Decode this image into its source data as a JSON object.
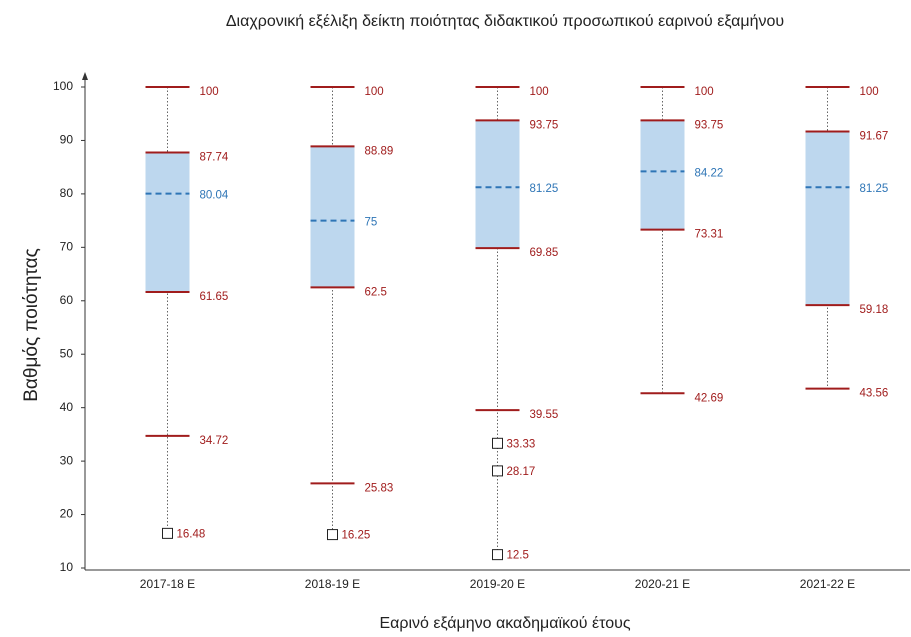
{
  "chart_data": {
    "type": "box",
    "title": "Διαχρονική εξέλιξη δείκτη ποιότητας διδακτικού προσωπικού εαρινού εξαμήνου",
    "xlabel": "Εαρινό εξάμηνο ακαδημαϊκού έτους",
    "ylabel": "Βαθμός ποιότητας",
    "categories": [
      "2017-18 E",
      "2018-19 E",
      "2019-20 E",
      "2020-21 E",
      "2021-22 E"
    ],
    "boxes": [
      {
        "max": 100,
        "q3": 87.74,
        "median": 80.04,
        "q1": 61.65,
        "min": 34.72,
        "outliers": [
          16.48
        ]
      },
      {
        "max": 100,
        "q3": 88.89,
        "median": 75,
        "q1": 62.5,
        "min": 25.83,
        "outliers": [
          16.25
        ]
      },
      {
        "max": 100,
        "q3": 93.75,
        "median": 81.25,
        "q1": 69.85,
        "min": 39.55,
        "outliers": [
          33.33,
          28.17,
          12.5
        ]
      },
      {
        "max": 100,
        "q3": 93.75,
        "median": 84.22,
        "q1": 73.31,
        "min": 42.69,
        "outliers": []
      },
      {
        "max": 100,
        "q3": 91.67,
        "median": 81.25,
        "q1": 59.18,
        "min": 43.56,
        "outliers": []
      }
    ],
    "box_color": "#bdd7ee",
    "whisker_color": "#a01c1c",
    "median_color": "#2e75b6",
    "ylim": [
      10,
      100
    ],
    "yticks": [
      10,
      20,
      30,
      40,
      50,
      60,
      70,
      80,
      90,
      100
    ]
  }
}
